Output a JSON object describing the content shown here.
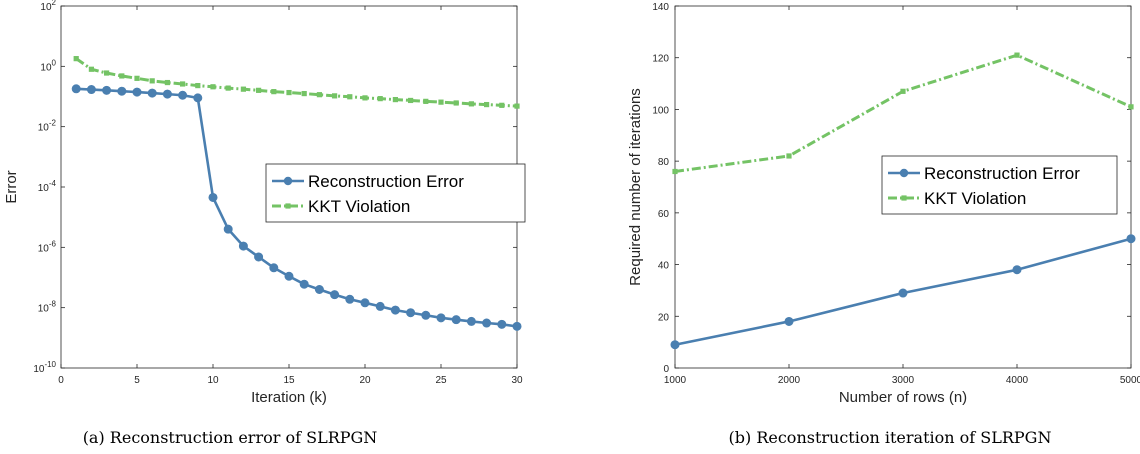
{
  "colors": {
    "recon": "#4A7FB0",
    "kkt": "#74C365",
    "axis": "#262626"
  },
  "chart_data": [
    {
      "type": "line",
      "caption": "(a)  Reconstruction error of SLRPGN",
      "xlabel": "Iteration (k)",
      "ylabel": "Error",
      "xlim": [
        0,
        30
      ],
      "ylim": [
        1e-10,
        100
      ],
      "yscale": "log",
      "xticks": [
        0,
        5,
        10,
        15,
        20,
        25,
        30
      ],
      "yticks": [
        -10,
        -8,
        -6,
        -4,
        -2,
        0,
        2
      ],
      "legend_position": "right",
      "series": [
        {
          "name": "Reconstruction Error",
          "style": "solid-circle",
          "x": [
            1,
            2,
            3,
            4,
            5,
            6,
            7,
            8,
            9,
            10,
            11,
            12,
            13,
            14,
            15,
            16,
            17,
            18,
            19,
            20,
            21,
            22,
            23,
            24,
            25,
            26,
            27,
            28,
            29,
            30
          ],
          "y": [
            0.18,
            0.17,
            0.16,
            0.15,
            0.14,
            0.13,
            0.12,
            0.11,
            0.09,
            4.5e-05,
            4e-06,
            1.1e-06,
            4.8e-07,
            2.1e-07,
            1.1e-07,
            6e-08,
            4e-08,
            2.7e-08,
            1.9e-08,
            1.45e-08,
            1.1e-08,
            8.3e-09,
            6.8e-09,
            5.6e-09,
            4.6e-09,
            4e-09,
            3.5e-09,
            3.1e-09,
            2.8e-09,
            2.4e-09
          ]
        },
        {
          "name": "KKT Violation",
          "style": "dashdot-square",
          "x": [
            1,
            2,
            3,
            4,
            5,
            6,
            7,
            8,
            9,
            10,
            11,
            12,
            13,
            14,
            15,
            16,
            17,
            18,
            19,
            20,
            21,
            22,
            23,
            24,
            25,
            26,
            27,
            28,
            29,
            30
          ],
          "y": [
            1.8,
            0.8,
            0.6,
            0.48,
            0.4,
            0.33,
            0.29,
            0.26,
            0.23,
            0.21,
            0.19,
            0.175,
            0.16,
            0.145,
            0.135,
            0.125,
            0.115,
            0.105,
            0.098,
            0.09,
            0.085,
            0.079,
            0.074,
            0.069,
            0.065,
            0.061,
            0.057,
            0.054,
            0.051,
            0.048
          ]
        }
      ]
    },
    {
      "type": "line",
      "caption": "(b)  Reconstruction iteration of SLRPGN",
      "xlabel": "Number of rows (n)",
      "ylabel": "Required number of iterations",
      "xlim": [
        1000,
        5000
      ],
      "ylim": [
        0,
        140
      ],
      "xticks": [
        1000,
        2000,
        3000,
        4000,
        5000
      ],
      "yticks": [
        0,
        20,
        40,
        60,
        80,
        100,
        120,
        140
      ],
      "legend_position": "right",
      "series": [
        {
          "name": "Reconstruction Error",
          "style": "solid-circle",
          "x": [
            1000,
            2000,
            3000,
            4000,
            5000
          ],
          "y": [
            9,
            18,
            29,
            38,
            50
          ]
        },
        {
          "name": "KKT Violation",
          "style": "dashdot-square",
          "x": [
            1000,
            2000,
            3000,
            4000,
            5000
          ],
          "y": [
            76,
            82,
            107,
            121,
            101
          ]
        }
      ]
    }
  ]
}
